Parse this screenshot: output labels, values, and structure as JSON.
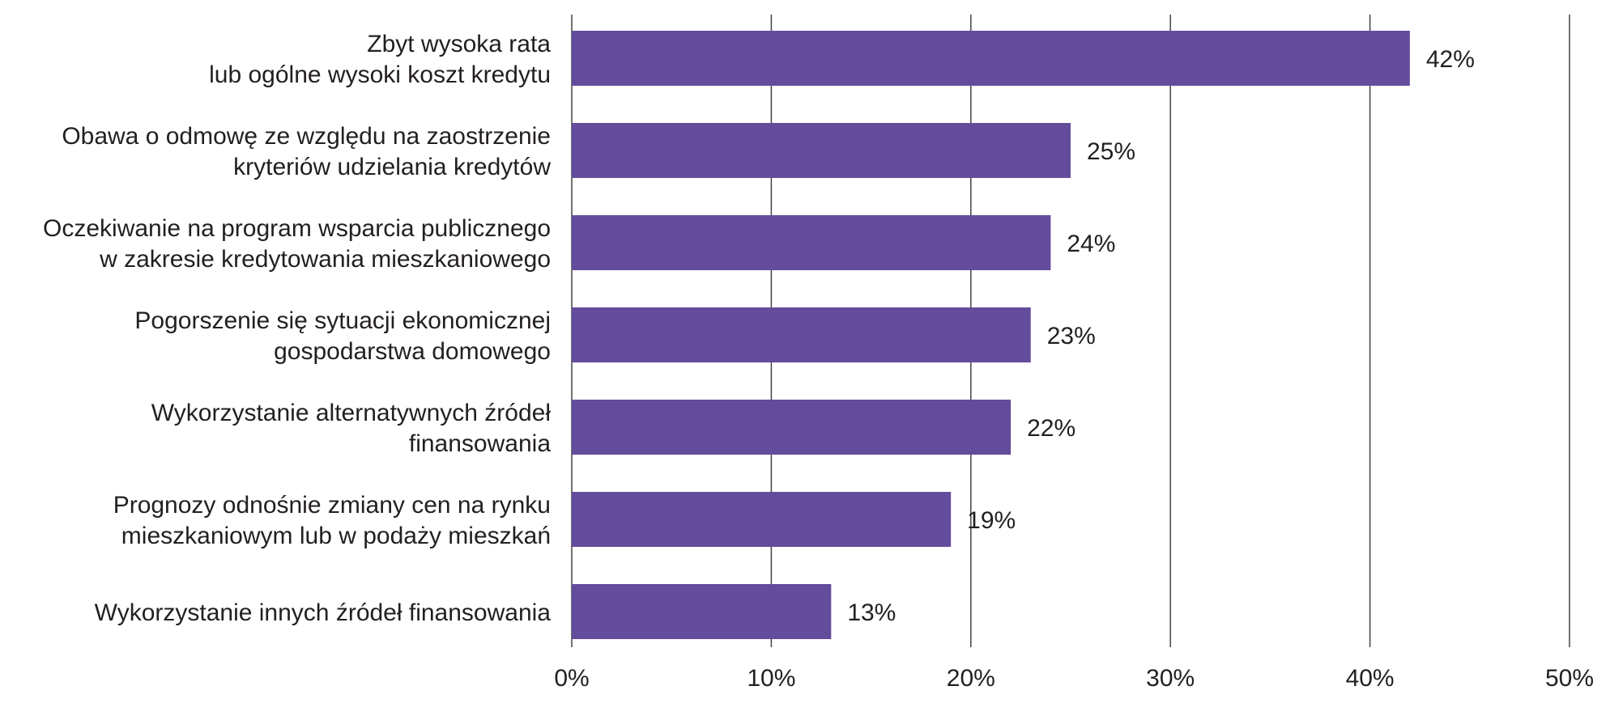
{
  "chart_data": {
    "type": "bar",
    "orientation": "horizontal",
    "title": "",
    "xlabel": "",
    "ylabel": "",
    "categories": [
      [
        "Zbyt wysoka rata",
        "lub ogólne wysoki koszt kredytu"
      ],
      [
        "Obawa o odmowę ze względu na zaostrzenie",
        "kryteriów udzielania kredytów"
      ],
      [
        "Oczekiwanie na program wsparcia publicznego",
        "w zakresie kredytowania mieszkaniowego"
      ],
      [
        "Pogorszenie się sytuacji ekonomicznej",
        "gospodarstwa domowego"
      ],
      [
        "Wykorzystanie alternatywnych źródeł",
        "finansowania"
      ],
      [
        "Prognozy odnośnie zmiany cen na rynku",
        "mieszkaniowym lub w podaży mieszkań"
      ],
      [
        "Wykorzystanie innych źródeł finansowania"
      ]
    ],
    "values": [
      42,
      25,
      24,
      23,
      22,
      19,
      13
    ],
    "value_labels": [
      "42%",
      "25%",
      "24%",
      "23%",
      "22%",
      "19%",
      "13%"
    ],
    "xlim": [
      0,
      50
    ],
    "x_ticks": [
      0,
      10,
      20,
      30,
      40,
      50
    ],
    "x_tick_labels": [
      "0%",
      "10%",
      "20%",
      "30%",
      "40%",
      "50%"
    ],
    "grid": true,
    "legend": "none",
    "bar_color": "#644c9c"
  }
}
